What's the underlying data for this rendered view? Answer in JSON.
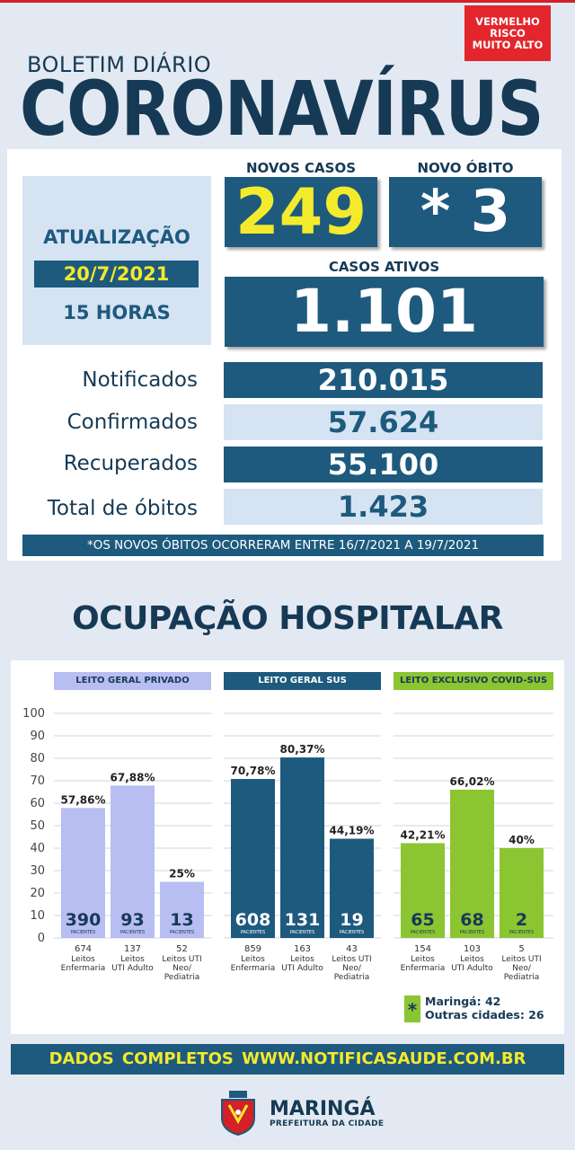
{
  "risk_badge": [
    "VERMELHO",
    "RISCO",
    "MUITO ALTO"
  ],
  "header": {
    "subtitle": "BOLETIM DIÁRIO",
    "title": "CORONAVÍRUS"
  },
  "update": {
    "label": "ATUALIZAÇÃO",
    "date": "20/7/2021",
    "hour": "15 HORAS"
  },
  "new_cases": {
    "label": "NOVOS CASOS",
    "value": "249"
  },
  "new_death": {
    "label": "NOVO ÓBITO",
    "value": "* 3"
  },
  "active_cases": {
    "label": "CASOS ATIVOS",
    "value": "1.101"
  },
  "stats": [
    {
      "label": "Notificados",
      "value": "210.015"
    },
    {
      "label": "Confirmados",
      "value": "57.624"
    },
    {
      "label": "Recuperados",
      "value": "55.100"
    },
    {
      "label": "Total de óbitos",
      "value": "1.423"
    }
  ],
  "footnote": "*OS NOVOS ÓBITOS OCORRERAM ENTRE 16/7/2021 A 19/7/2021",
  "hospital_title": "OCUPAÇÃO HOSPITALAR",
  "colors": {
    "navy": "#1d5a7e",
    "yellow": "#f4ea2c",
    "lavender": "#b8bef2",
    "green": "#8cc532",
    "red": "#e2262c"
  },
  "chart_data": {
    "type": "bar",
    "ylim": [
      0,
      100
    ],
    "yticks": [
      "0",
      "10",
      "20",
      "30",
      "40",
      "50",
      "60",
      "70",
      "80",
      "90",
      "100"
    ],
    "groups": [
      {
        "name": "LEITO GERAL PRIVADO",
        "color": "#b8bef2",
        "bars": [
          {
            "percent": 57.86,
            "pct_label": "57,86%",
            "patients": "390",
            "beds": "674",
            "bed_type": [
              "Leitos",
              "Enfermaria"
            ]
          },
          {
            "percent": 67.88,
            "pct_label": "67,88%",
            "patients": "93",
            "beds": "137",
            "bed_type": [
              "Leitos",
              "UTI Adulto"
            ]
          },
          {
            "percent": 25,
            "pct_label": "25%",
            "patients": "13",
            "beds": "52",
            "bed_type": [
              "Leitos UTI",
              "Neo/",
              "Pediatria"
            ]
          }
        ]
      },
      {
        "name": "LEITO GERAL SUS",
        "color": "#1d5a7e",
        "bars": [
          {
            "percent": 70.78,
            "pct_label": "70,78%",
            "patients": "608",
            "beds": "859",
            "bed_type": [
              "Leitos",
              "Enfermaria"
            ]
          },
          {
            "percent": 80.37,
            "pct_label": "80,37%",
            "patients": "131",
            "beds": "163",
            "bed_type": [
              "Leitos",
              "UTI Adulto"
            ]
          },
          {
            "percent": 44.19,
            "pct_label": "44,19%",
            "patients": "19",
            "beds": "43",
            "bed_type": [
              "Leitos UTI",
              "Neo/",
              "Pediatria"
            ]
          }
        ]
      },
      {
        "name": "LEITO EXCLUSIVO COVID-SUS",
        "color": "#8cc532",
        "bars": [
          {
            "percent": 42.21,
            "pct_label": "42,21%",
            "patients": "65",
            "beds": "154",
            "bed_type": [
              "Leitos",
              "Enfermaria"
            ]
          },
          {
            "percent": 66.02,
            "pct_label": "66,02%",
            "patients": "68",
            "beds": "103",
            "bed_type": [
              "Leitos",
              "UTI Adulto"
            ]
          },
          {
            "percent": 40,
            "pct_label": "40%",
            "patients": "2",
            "beds": "5",
            "bed_type": [
              "Leitos UTI",
              "Neo/",
              "Pediatria"
            ]
          }
        ]
      }
    ],
    "patients_caption": "PACIENTES",
    "legend": {
      "mark": "*",
      "lines": [
        "Maringá: 42",
        "Outras cidades: 26"
      ]
    }
  },
  "footer": {
    "site": "DADOS COMPLETOS  WWW.NOTIFICASAUDE.COM.BR",
    "city": "MARINGÁ",
    "city_sub": "PREFEITURA DA CIDADE"
  }
}
